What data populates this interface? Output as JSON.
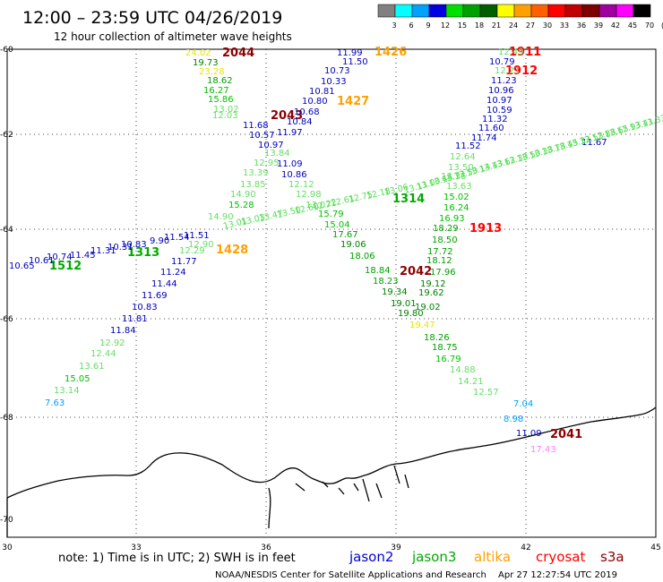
{
  "header": {
    "title": "12:00 – 23:59 UTC 04/26/2019",
    "subtitle": "12 hour collection of altimeter wave heights",
    "colorbar_labels": [
      "3",
      "6",
      "9",
      "12",
      "15",
      "18",
      "21",
      "24",
      "27",
      "30",
      "33",
      "36",
      "39",
      "42",
      "45",
      "70",
      "(ft)"
    ],
    "colorbar_colors": [
      "#808080",
      "#00ffff",
      "#00a0ff",
      "#0000e0",
      "#00e000",
      "#00a000",
      "#006000",
      "#ffff00",
      "#ffa000",
      "#ff6000",
      "#ff0000",
      "#c00000",
      "#800000",
      "#a000a0",
      "#ff00ff",
      "#000000"
    ]
  },
  "axes": {
    "lat_labels": [
      "-60",
      "-62",
      "-64",
      "-66",
      "-68",
      "-70"
    ],
    "lon_labels": [
      "30",
      "33",
      "36",
      "39",
      "42",
      "45"
    ]
  },
  "footer": {
    "note": "note:  1) Time is in UTC;  2) SWH is in feet",
    "legend": [
      {
        "label": "jason2",
        "color": "#0000dd"
      },
      {
        "label": "jason3",
        "color": "#00aa00"
      },
      {
        "label": "altika",
        "color": "#ffa000"
      },
      {
        "label": "cryosat",
        "color": "#ff0000"
      },
      {
        "label": "s3a",
        "color": "#8b0000"
      }
    ],
    "credit": "NOAA/NESDIS Center for Satellite Applications and Research",
    "timestamp": "Apr 27 12:27:54 UTC 2019"
  },
  "time_labels": [
    {
      "t": "2044",
      "c": "#8b0000"
    },
    {
      "t": "1426",
      "c": "#ffa000"
    },
    {
      "t": "1911",
      "c": "#ff0000"
    },
    {
      "t": "1912",
      "c": "#ff0000"
    },
    {
      "t": "1427",
      "c": "#ffa000"
    },
    {
      "t": "2043",
      "c": "#8b0000"
    },
    {
      "t": "1314",
      "c": "#00aa00"
    },
    {
      "t": "1913",
      "c": "#ff0000"
    },
    {
      "t": "1313",
      "c": "#00aa00"
    },
    {
      "t": "1512",
      "c": "#00aa00"
    },
    {
      "t": "1428",
      "c": "#ffa000"
    },
    {
      "t": "2042",
      "c": "#8b0000"
    },
    {
      "t": "2041",
      "c": "#8b0000"
    }
  ],
  "wave_values": [
    {
      "t": "24.02",
      "c": "#e6e600"
    },
    {
      "t": "19.73",
      "c": "#008000"
    },
    {
      "t": "23.28",
      "c": "#e6e600"
    },
    {
      "t": "18.62",
      "c": "#00a000"
    },
    {
      "t": "16.27",
      "c": "#00c000"
    },
    {
      "t": "15.86",
      "c": "#00c000"
    },
    {
      "t": "13.02",
      "c": "#66dd66"
    },
    {
      "t": "12.03",
      "c": "#66dd66"
    },
    {
      "t": "11.68",
      "c": "#0000bb"
    },
    {
      "t": "10.57",
      "c": "#0000bb"
    },
    {
      "t": "10.97",
      "c": "#0000bb"
    },
    {
      "t": "13.84",
      "c": "#66dd66"
    },
    {
      "t": "12.95",
      "c": "#66dd66"
    },
    {
      "t": "13.39",
      "c": "#66dd66"
    },
    {
      "t": "13.85",
      "c": "#66dd66"
    },
    {
      "t": "14.90",
      "c": "#66dd66"
    },
    {
      "t": "15.28",
      "c": "#00c000"
    },
    {
      "t": "14.90",
      "c": "#66dd66"
    },
    {
      "t": "11.99",
      "c": "#0000bb"
    },
    {
      "t": "11.50",
      "c": "#0000bb"
    },
    {
      "t": "10.73",
      "c": "#0000bb"
    },
    {
      "t": "10.33",
      "c": "#0000bb"
    },
    {
      "t": "10.81",
      "c": "#0000bb"
    },
    {
      "t": "10.80",
      "c": "#0000bb"
    },
    {
      "t": "10.68",
      "c": "#0000bb"
    },
    {
      "t": "10.84",
      "c": "#0000bb"
    },
    {
      "t": "11.97",
      "c": "#0000bb"
    },
    {
      "t": "11.09",
      "c": "#0000bb"
    },
    {
      "t": "10.86",
      "c": "#0000bb"
    },
    {
      "t": "12.12",
      "c": "#66dd66"
    },
    {
      "t": "12.98",
      "c": "#66dd66"
    },
    {
      "t": "13.07",
      "c": "#66dd66"
    },
    {
      "t": "15.79",
      "c": "#00c000"
    },
    {
      "t": "15.04",
      "c": "#00c000"
    },
    {
      "t": "17.67",
      "c": "#00a000"
    },
    {
      "t": "19.06",
      "c": "#008000"
    },
    {
      "t": "18.06",
      "c": "#00a000"
    },
    {
      "t": "18.84",
      "c": "#00a000"
    },
    {
      "t": "18.23",
      "c": "#00a000"
    },
    {
      "t": "19.34",
      "c": "#008000"
    },
    {
      "t": "19.01",
      "c": "#008000"
    },
    {
      "t": "19.80",
      "c": "#008000"
    },
    {
      "t": "19.47",
      "c": "#e6e600"
    },
    {
      "t": "12.49",
      "c": "#66dd66"
    },
    {
      "t": "10.79",
      "c": "#0000bb"
    },
    {
      "t": "12.21",
      "c": "#66dd66"
    },
    {
      "t": "11.23",
      "c": "#0000bb"
    },
    {
      "t": "10.96",
      "c": "#0000bb"
    },
    {
      "t": "10.97",
      "c": "#0000bb"
    },
    {
      "t": "10.59",
      "c": "#0000bb"
    },
    {
      "t": "11.32",
      "c": "#0000bb"
    },
    {
      "t": "11.60",
      "c": "#0000bb"
    },
    {
      "t": "11.74",
      "c": "#0000bb"
    },
    {
      "t": "11.52",
      "c": "#0000bb"
    },
    {
      "t": "12.64",
      "c": "#66dd66"
    },
    {
      "t": "13.50",
      "c": "#66dd66"
    },
    {
      "t": "13.35",
      "c": "#66dd66"
    },
    {
      "t": "13.63",
      "c": "#66dd66"
    },
    {
      "t": "15.02",
      "c": "#00c000"
    },
    {
      "t": "16.24",
      "c": "#00c000"
    },
    {
      "t": "16.93",
      "c": "#00c000"
    },
    {
      "t": "18.29",
      "c": "#00a000"
    },
    {
      "t": "18.50",
      "c": "#00a000"
    },
    {
      "t": "18.12",
      "c": "#00a000"
    },
    {
      "t": "17.72",
      "c": "#00a000"
    },
    {
      "t": "17.96",
      "c": "#00a000"
    },
    {
      "t": "19.12",
      "c": "#008000"
    },
    {
      "t": "19.62",
      "c": "#008000"
    },
    {
      "t": "19.02",
      "c": "#008000"
    },
    {
      "t": "18.26",
      "c": "#00a000"
    },
    {
      "t": "18.75",
      "c": "#00a000"
    },
    {
      "t": "16.79",
      "c": "#00c000"
    },
    {
      "t": "14.88",
      "c": "#66dd66"
    },
    {
      "t": "14.21",
      "c": "#66dd66"
    },
    {
      "t": "12.57",
      "c": "#66dd66"
    },
    {
      "t": "7.04",
      "c": "#00a0ff"
    },
    {
      "t": "8.98",
      "c": "#00a0ff"
    },
    {
      "t": "11.09",
      "c": "#0000bb"
    },
    {
      "t": "17.43",
      "c": "#ff80ff"
    },
    {
      "t": "11.67",
      "c": "#0000bb"
    },
    {
      "t": "10.65",
      "c": "#0000bb"
    },
    {
      "t": "10.61",
      "c": "#0000bb"
    },
    {
      "t": "10.74",
      "c": "#0000bb"
    },
    {
      "t": "11.45",
      "c": "#0000bb"
    },
    {
      "t": "11.31",
      "c": "#0000bb"
    },
    {
      "t": "10.31",
      "c": "#0000bb"
    },
    {
      "t": "10.83",
      "c": "#0000bb"
    },
    {
      "t": "9.90",
      "c": "#0000bb"
    },
    {
      "t": "11.54",
      "c": "#0000bb"
    },
    {
      "t": "11.51",
      "c": "#0000bb"
    },
    {
      "t": "12.90",
      "c": "#66dd66"
    },
    {
      "t": "12.29",
      "c": "#66dd66"
    },
    {
      "t": "11.77",
      "c": "#0000bb"
    },
    {
      "t": "11.24",
      "c": "#0000bb"
    },
    {
      "t": "11.44",
      "c": "#0000bb"
    },
    {
      "t": "11.69",
      "c": "#0000bb"
    },
    {
      "t": "10.83",
      "c": "#0000bb"
    },
    {
      "t": "11.81",
      "c": "#0000bb"
    },
    {
      "t": "11.84",
      "c": "#0000bb"
    },
    {
      "t": "12.92",
      "c": "#66dd66"
    },
    {
      "t": "12.44",
      "c": "#66dd66"
    },
    {
      "t": "13.61",
      "c": "#66dd66"
    },
    {
      "t": "15.05",
      "c": "#00c000"
    },
    {
      "t": "13.14",
      "c": "#66dd66"
    },
    {
      "t": "7.63",
      "c": "#00a0ff"
    }
  ],
  "track_values": {
    "jason3_north": [
      "13.33",
      "13.41",
      "12.93",
      "13.65",
      "12.88",
      "13.53",
      "13.32",
      "13.45",
      "13.78",
      "13.38",
      "13.50",
      "13.30",
      "13.62",
      "13.43",
      "13.14",
      "13.50",
      "13.72",
      "13.45",
      "13.00",
      "13.11"
    ],
    "jason3_south": [
      "13.06",
      "12.18",
      "12.75",
      "12.61",
      "12.22",
      "12.60",
      "13.50",
      "13.47",
      "13.03",
      "13.01"
    ]
  }
}
